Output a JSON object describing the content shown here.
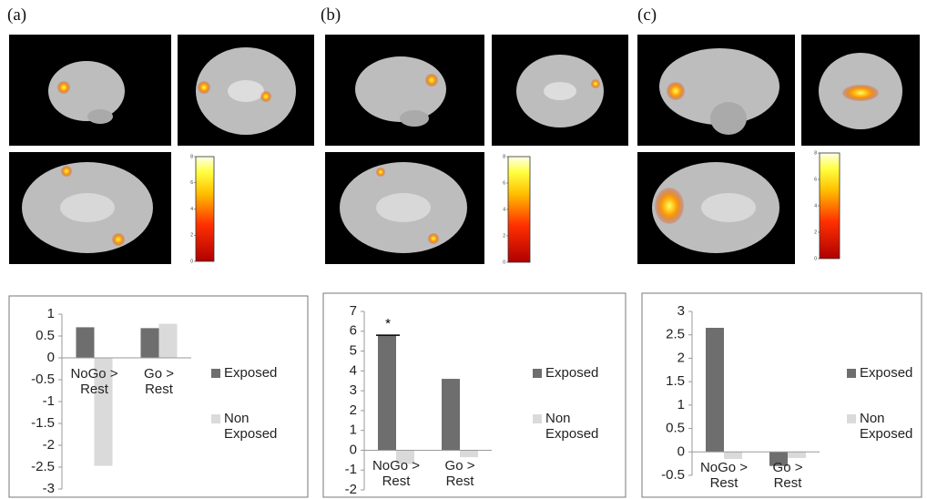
{
  "panel_labels": [
    "(a)",
    "(b)",
    "(c)"
  ],
  "colorbar": {
    "ticks": [
      0,
      2,
      4,
      6,
      8
    ]
  },
  "chart_data": [
    {
      "type": "bar",
      "categories": [
        "NoGo > Rest",
        "Go > Rest"
      ],
      "series": [
        {
          "name": "Exposed",
          "color": "#6e6e6e",
          "values": [
            0.7,
            0.68
          ]
        },
        {
          "name": "Non Exposed",
          "color": "#dadada",
          "values": [
            -2.47,
            0.78
          ]
        }
      ],
      "ylim": [
        -3,
        1
      ],
      "yticks": [
        -3,
        -2.5,
        -2,
        -1.5,
        -1,
        -0.5,
        0,
        0.5,
        1
      ]
    },
    {
      "type": "bar",
      "categories": [
        "NoGo > Rest",
        "Go > Rest"
      ],
      "series": [
        {
          "name": "Exposed",
          "color": "#6e6e6e",
          "values": [
            5.8,
            3.6
          ]
        },
        {
          "name": "Non Exposed",
          "color": "#dadada",
          "values": [
            -0.7,
            -0.35
          ]
        }
      ],
      "ylim": [
        -2,
        7
      ],
      "yticks": [
        -2,
        -1,
        0,
        1,
        2,
        3,
        4,
        5,
        6,
        7
      ],
      "annotation": "*"
    },
    {
      "type": "bar",
      "categories": [
        "NoGo > Rest",
        "Go > Rest"
      ],
      "series": [
        {
          "name": "Exposed",
          "color": "#6e6e6e",
          "values": [
            2.65,
            -0.3
          ]
        },
        {
          "name": "Non Exposed",
          "color": "#dadada",
          "values": [
            -0.15,
            -0.13
          ]
        }
      ],
      "ylim": [
        -0.5,
        3
      ],
      "yticks": [
        -0.5,
        0,
        0.5,
        1,
        1.5,
        2,
        2.5,
        3
      ]
    }
  ]
}
